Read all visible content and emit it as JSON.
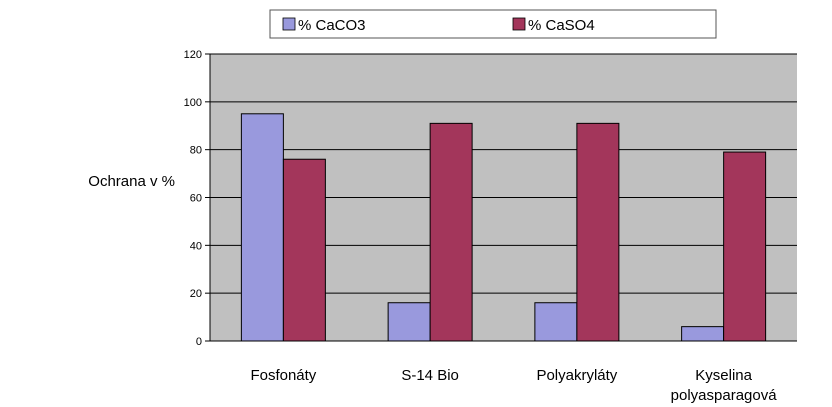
{
  "chart_data": {
    "type": "bar",
    "ylabel": "Ochrana v %",
    "xlabel": "",
    "categories": [
      [
        "Fosfonáty"
      ],
      [
        "S-14 Bio"
      ],
      [
        "Polyakryláty"
      ],
      [
        "Kyselina",
        "polyasparagová"
      ]
    ],
    "series": [
      {
        "name": "% CaCO3",
        "color": "#9999dd",
        "values": [
          95,
          16,
          16,
          6
        ]
      },
      {
        "name": "% CaSO4",
        "color": "#a3365b",
        "values": [
          76,
          91,
          91,
          79
        ]
      }
    ],
    "ylim": [
      0,
      120
    ],
    "yticks": [
      0,
      20,
      40,
      60,
      80,
      100,
      120
    ],
    "grid": true,
    "plot_background": "#c0c0c0",
    "legend_position": "top"
  }
}
